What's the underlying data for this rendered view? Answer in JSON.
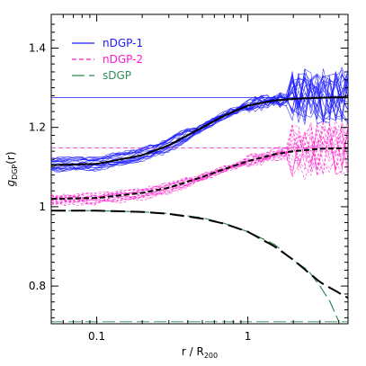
{
  "chart_data": {
    "type": "line",
    "xscale": "log",
    "xlim": [
      0.05,
      4.6
    ],
    "ylim": [
      0.705,
      1.485
    ],
    "xlabel": {
      "main": "r / R",
      "sub": "200"
    },
    "ylabel": {
      "main": "g",
      "sub": "DGP",
      "suffix": "(r)"
    },
    "x_ticks": [
      {
        "value": 0.1,
        "label": "0.1"
      },
      {
        "value": 1,
        "label": "1"
      }
    ],
    "y_ticks": [
      {
        "value": 0.8,
        "label": "0.8"
      },
      {
        "value": 1.0,
        "label": "1"
      },
      {
        "value": 1.2,
        "label": "1.2"
      },
      {
        "value": 1.4,
        "label": "1.4"
      }
    ],
    "legend": [
      {
        "name": "nDGP-1",
        "color": "#1a1aff",
        "style": "solid"
      },
      {
        "name": "nDGP-2",
        "color": "#ff1acc",
        "style": "short-dash"
      },
      {
        "name": "sDGP",
        "color": "#2e8b57",
        "style": "long-dash"
      }
    ],
    "series": [
      {
        "name": "nDGP-1",
        "color": "#1a1aff",
        "asymptote": 1.275,
        "theory": {
          "x": [
            0.05,
            0.1,
            0.2,
            0.3,
            0.5,
            0.7,
            1.0,
            1.5,
            2.0,
            3.0,
            4.6
          ],
          "y": [
            1.105,
            1.108,
            1.13,
            1.155,
            1.2,
            1.23,
            1.255,
            1.268,
            1.272,
            1.275,
            1.276
          ]
        },
        "bundle_count": 22
      },
      {
        "name": "nDGP-2",
        "color": "#ff1acc",
        "asymptote": 1.148,
        "theory": {
          "x": [
            0.05,
            0.1,
            0.2,
            0.3,
            0.5,
            0.7,
            1.0,
            1.5,
            2.0,
            3.0,
            4.6
          ],
          "y": [
            1.02,
            1.022,
            1.035,
            1.048,
            1.075,
            1.095,
            1.115,
            1.132,
            1.14,
            1.146,
            1.148
          ]
        },
        "bundle_count": 18
      },
      {
        "name": "sDGP",
        "color": "#2e8b57",
        "asymptote": 0.71,
        "theory": {
          "x": [
            0.05,
            0.1,
            0.2,
            0.3,
            0.5,
            0.7,
            1.0,
            1.5,
            2.0,
            3.0,
            4.6
          ],
          "y": [
            0.99,
            0.99,
            0.987,
            0.982,
            0.97,
            0.957,
            0.937,
            0.9,
            0.866,
            0.81,
            0.77
          ]
        },
        "simulation": {
          "x": [
            0.05,
            0.1,
            0.2,
            0.3,
            0.5,
            0.7,
            1.0,
            1.5,
            2.0,
            2.5,
            3.0,
            3.5,
            4.0
          ],
          "y": [
            0.99,
            0.99,
            0.987,
            0.983,
            0.972,
            0.958,
            0.937,
            0.905,
            0.865,
            0.84,
            0.8,
            0.76,
            0.71
          ]
        }
      }
    ]
  }
}
